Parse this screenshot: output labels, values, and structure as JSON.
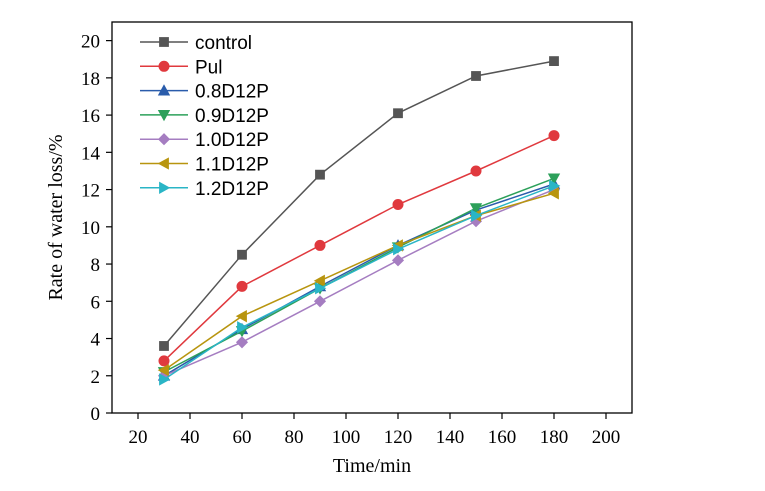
{
  "chart_data": {
    "type": "line",
    "xlabel": "Time/min",
    "ylabel": "Rate of water loss/%",
    "xlim": [
      10,
      210
    ],
    "ylim": [
      0,
      21
    ],
    "xticks": [
      20,
      40,
      60,
      80,
      100,
      120,
      140,
      160,
      180,
      200
    ],
    "yticks": [
      0,
      2,
      4,
      6,
      8,
      10,
      12,
      14,
      16,
      18,
      20
    ],
    "x": [
      30,
      60,
      90,
      120,
      150,
      180
    ],
    "legend_position": "top-left",
    "grid": false,
    "series": [
      {
        "name": "control",
        "color": "#555555",
        "marker": "square",
        "values": [
          3.6,
          8.5,
          12.8,
          16.1,
          18.1,
          18.9
        ]
      },
      {
        "name": "Pul",
        "color": "#e0393e",
        "marker": "circle",
        "values": [
          2.8,
          6.8,
          9.0,
          11.2,
          13.0,
          14.9
        ]
      },
      {
        "name": "0.8D12P",
        "color": "#2a5cab",
        "marker": "triangle-up",
        "values": [
          2.0,
          4.5,
          6.8,
          9.0,
          10.9,
          12.3
        ]
      },
      {
        "name": "0.9D12P",
        "color": "#2ca05a",
        "marker": "triangle-down",
        "values": [
          2.2,
          4.4,
          6.7,
          8.9,
          11.0,
          12.6
        ]
      },
      {
        "name": "1.0D12P",
        "color": "#a57dc1",
        "marker": "diamond",
        "values": [
          2.0,
          3.8,
          6.0,
          8.2,
          10.3,
          12.0
        ]
      },
      {
        "name": "1.1D12P",
        "color": "#b8950f",
        "marker": "triangle-left",
        "values": [
          2.3,
          5.2,
          7.1,
          9.0,
          10.6,
          11.8
        ]
      },
      {
        "name": "1.2D12P",
        "color": "#2ab5c6",
        "marker": "triangle-right",
        "values": [
          1.8,
          4.6,
          6.7,
          8.8,
          10.6,
          12.2
        ]
      }
    ]
  }
}
